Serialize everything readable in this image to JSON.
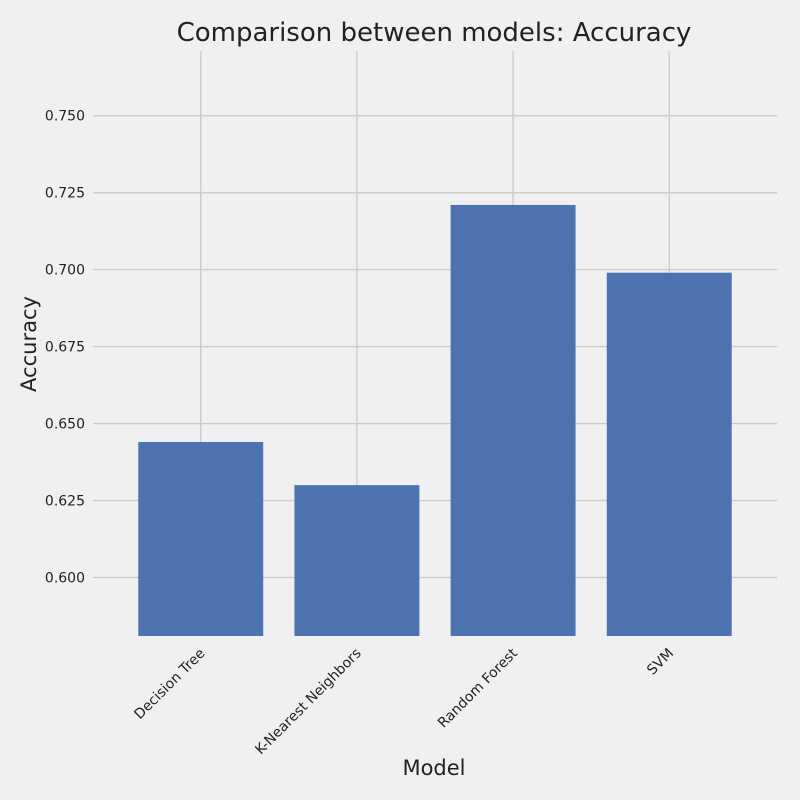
{
  "chart_data": {
    "type": "bar",
    "title": "Comparison between models: Accuracy",
    "xlabel": "Model",
    "ylabel": "Accuracy",
    "categories": [
      "Decision Tree",
      "K-Nearest Neighbors",
      "Random Forest",
      "SVM"
    ],
    "values": [
      0.644,
      0.63,
      0.721,
      0.699
    ],
    "ylim": [
      0.581,
      0.771
    ],
    "yticks": [
      0.6,
      0.625,
      0.65,
      0.675,
      0.7,
      0.725,
      0.75
    ],
    "ytick_labels": [
      "0.600",
      "0.625",
      "0.650",
      "0.675",
      "0.700",
      "0.725",
      "0.750"
    ],
    "grid": true,
    "bar_color": "#4c72b0",
    "background_color": "#f0f0f0",
    "grid_color": "#cbcbcb"
  }
}
